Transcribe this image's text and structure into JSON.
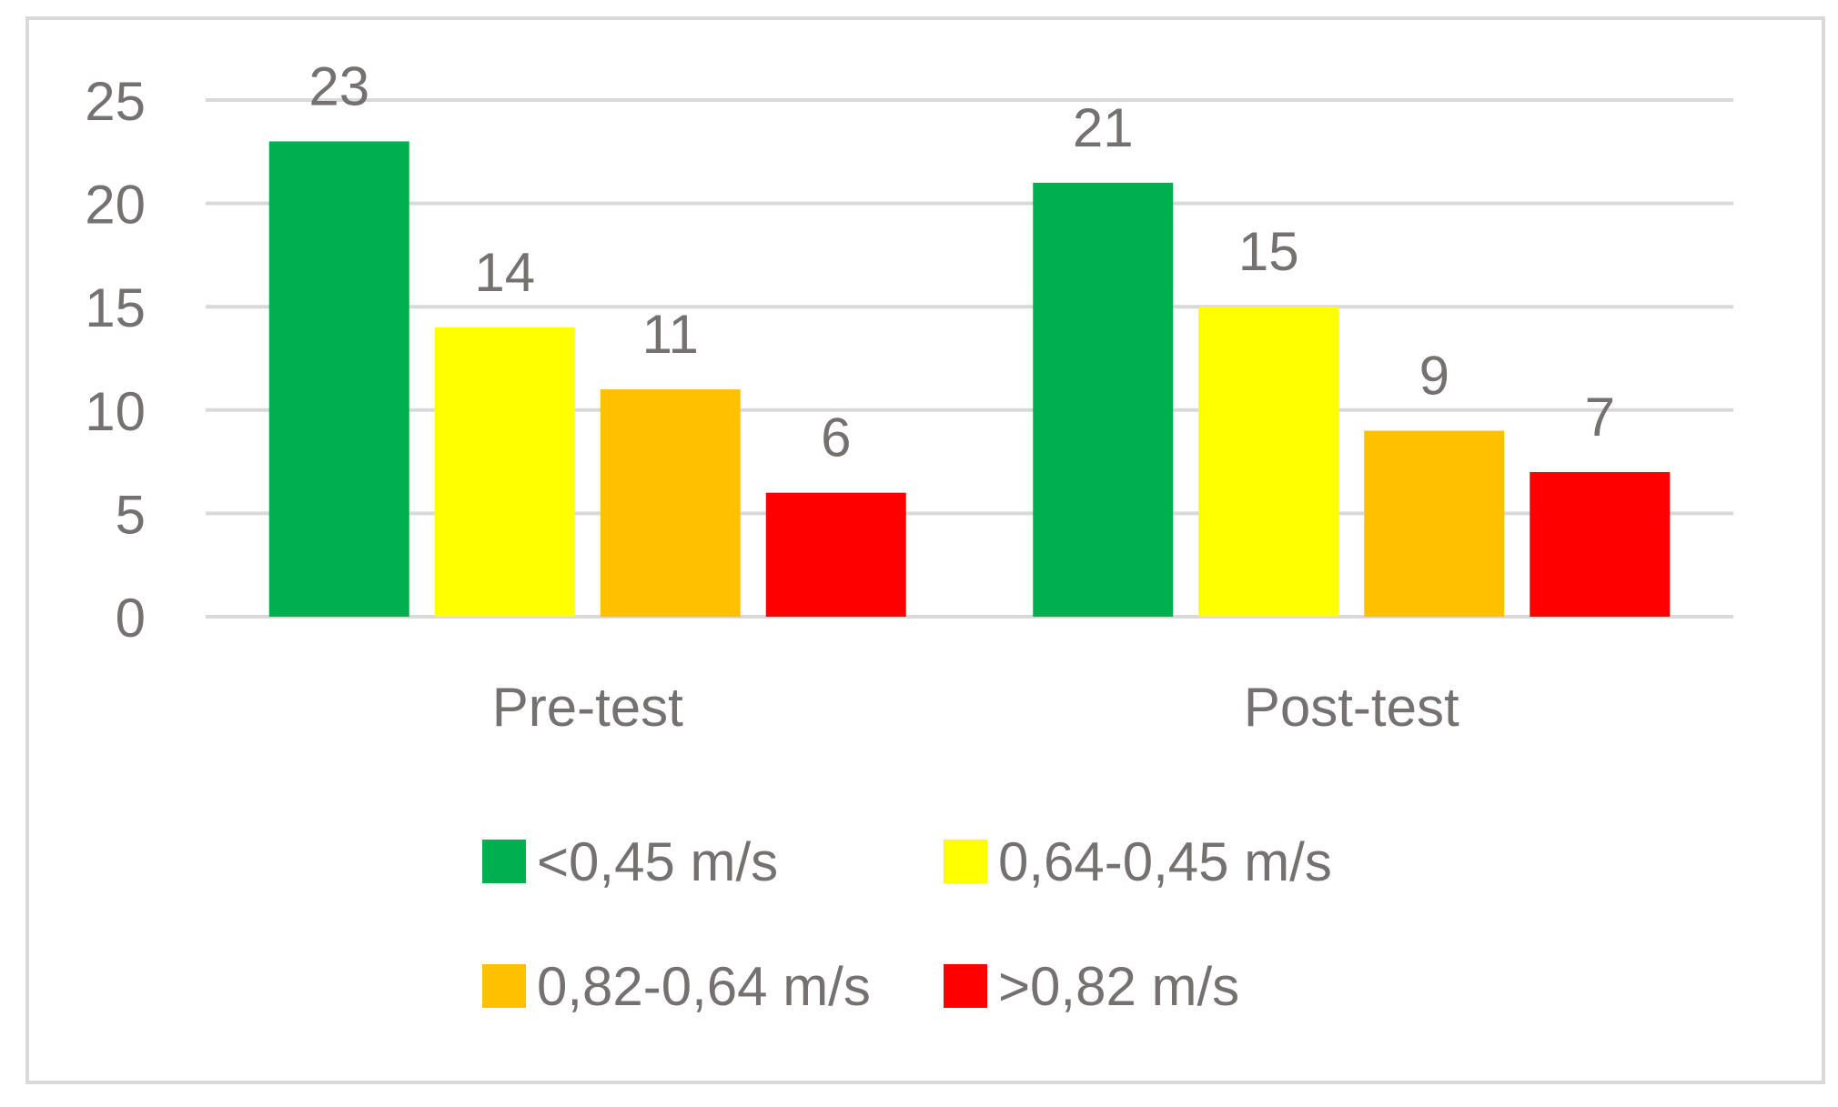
{
  "chart_data": {
    "type": "bar",
    "categories": [
      "Pre-test",
      "Post-test"
    ],
    "series": [
      {
        "name": "<0,45 m/s",
        "values": [
          23,
          21
        ],
        "color": "#00b050"
      },
      {
        "name": "0,64-0,45 m/s",
        "values": [
          14,
          15
        ],
        "color": "#ffff00"
      },
      {
        "name": "0,82-0,64 m/s",
        "values": [
          11,
          9
        ],
        "color": "#ffc000"
      },
      {
        "name": ">0,82 m/s",
        "values": [
          6,
          7
        ],
        "color": "#ff0000"
      }
    ],
    "ylim": [
      0,
      25
    ],
    "yticks": [
      0,
      5,
      10,
      15,
      20,
      25
    ],
    "title": "",
    "xlabel": "",
    "ylabel": "",
    "grid": true,
    "legend_position": "bottom",
    "colors": {
      "text": "#767171",
      "grid": "#d9d9d9"
    }
  }
}
